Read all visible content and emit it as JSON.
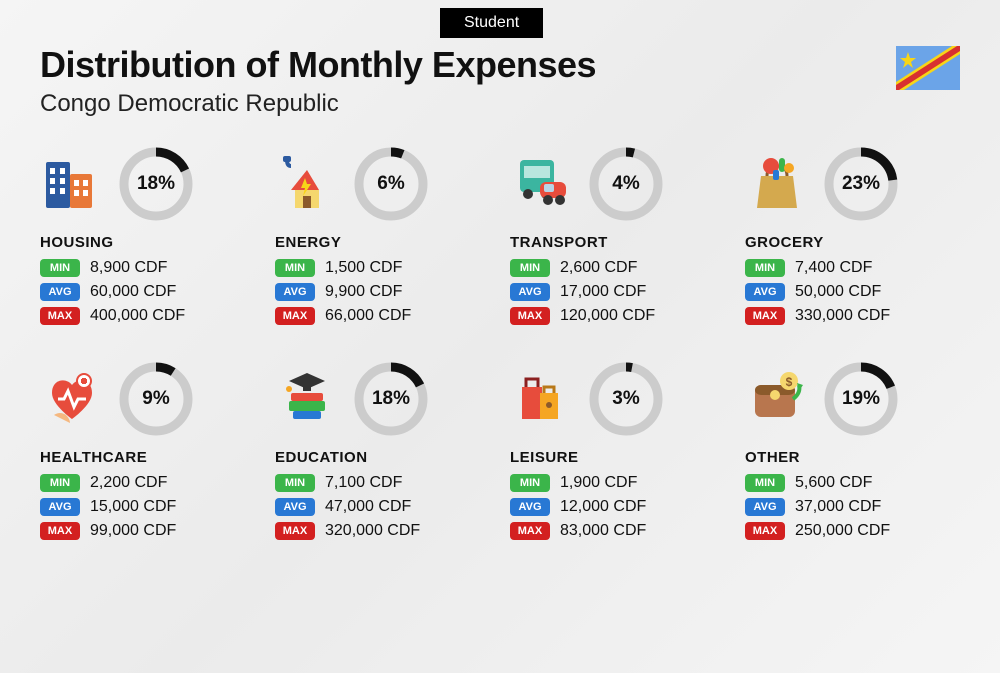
{
  "badge": "Student",
  "title": "Distribution of Monthly Expenses",
  "subtitle": "Congo Democratic Republic",
  "labels": {
    "min": "MIN",
    "avg": "AVG",
    "max": "MAX"
  },
  "colors": {
    "min_bg": "#3bb54a",
    "avg_bg": "#2878d4",
    "max_bg": "#d32020",
    "ring_fg": "#111111",
    "ring_bg": "#cccccc"
  },
  "ring": {
    "radius": 32,
    "stroke": 9,
    "size": 76
  },
  "categories": [
    {
      "key": "housing",
      "name": "HOUSING",
      "percent": 18,
      "percent_text": "18%",
      "min": "8,900 CDF",
      "avg": "60,000 CDF",
      "max": "400,000 CDF",
      "icon": "buildings"
    },
    {
      "key": "energy",
      "name": "ENERGY",
      "percent": 6,
      "percent_text": "6%",
      "min": "1,500 CDF",
      "avg": "9,900 CDF",
      "max": "66,000 CDF",
      "icon": "energy"
    },
    {
      "key": "transport",
      "name": "TRANSPORT",
      "percent": 4,
      "percent_text": "4%",
      "min": "2,600 CDF",
      "avg": "17,000 CDF",
      "max": "120,000 CDF",
      "icon": "transport"
    },
    {
      "key": "grocery",
      "name": "GROCERY",
      "percent": 23,
      "percent_text": "23%",
      "min": "7,400 CDF",
      "avg": "50,000 CDF",
      "max": "330,000 CDF",
      "icon": "grocery"
    },
    {
      "key": "healthcare",
      "name": "HEALTHCARE",
      "percent": 9,
      "percent_text": "9%",
      "min": "2,200 CDF",
      "avg": "15,000 CDF",
      "max": "99,000 CDF",
      "icon": "healthcare"
    },
    {
      "key": "education",
      "name": "EDUCATION",
      "percent": 18,
      "percent_text": "18%",
      "min": "7,100 CDF",
      "avg": "47,000 CDF",
      "max": "320,000 CDF",
      "icon": "education"
    },
    {
      "key": "leisure",
      "name": "LEISURE",
      "percent": 3,
      "percent_text": "3%",
      "min": "1,900 CDF",
      "avg": "12,000 CDF",
      "max": "83,000 CDF",
      "icon": "leisure"
    },
    {
      "key": "other",
      "name": "OTHER",
      "percent": 19,
      "percent_text": "19%",
      "min": "5,600 CDF",
      "avg": "37,000 CDF",
      "max": "250,000 CDF",
      "icon": "other"
    }
  ]
}
